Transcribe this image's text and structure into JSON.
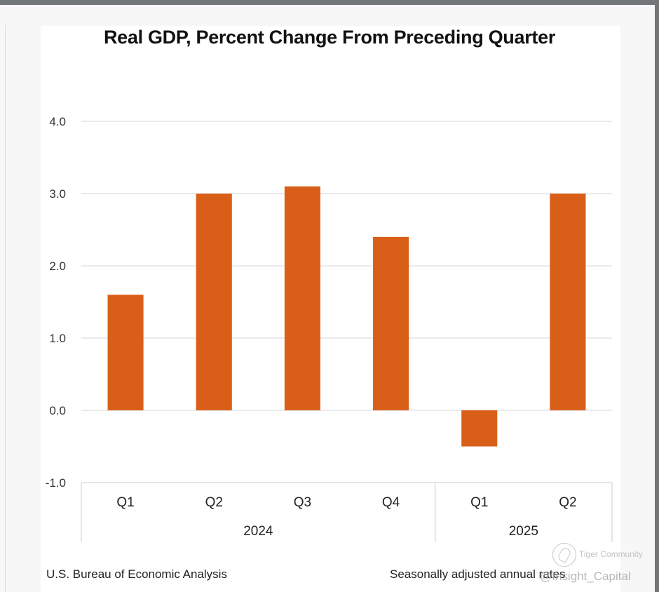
{
  "chart_data": {
    "type": "bar",
    "title": "Real GDP, Percent Change From Preceding Quarter",
    "xlabel": "",
    "ylabel": "",
    "categories": [
      "Q1",
      "Q2",
      "Q3",
      "Q4",
      "Q1",
      "Q2"
    ],
    "groups": [
      {
        "label": "2024",
        "start": 0,
        "end": 3
      },
      {
        "label": "2025",
        "start": 4,
        "end": 5
      }
    ],
    "values": [
      1.6,
      3.0,
      3.1,
      2.4,
      -0.5,
      3.0
    ],
    "ylim": [
      -1.0,
      4.0
    ],
    "yticks": [
      "-1.0",
      "0.0",
      "1.0",
      "2.0",
      "3.0",
      "4.0"
    ],
    "ytick_values": [
      -1,
      0,
      1,
      2,
      3,
      4
    ],
    "grid": true,
    "legend": "none",
    "bar_color": "#d95f18",
    "source": "U.S. Bureau of Economic Analysis",
    "note": "Seasonally adjusted annual rates"
  },
  "watermark": {
    "brand": "Tiger Community",
    "handle": "@Insight_Capital"
  }
}
